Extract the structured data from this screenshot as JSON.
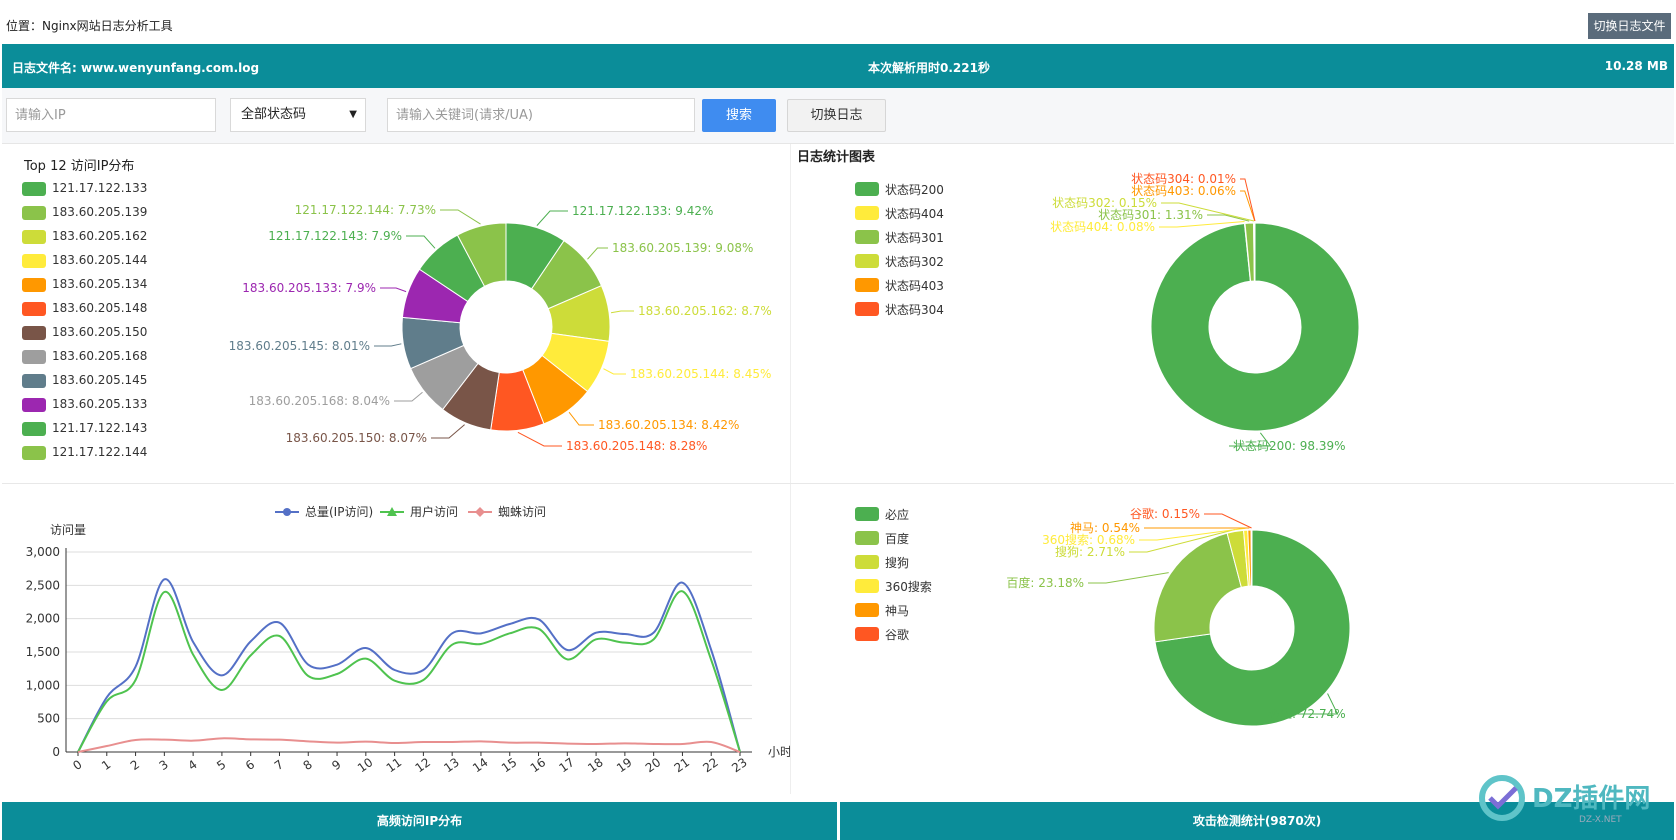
{
  "header": {
    "location_label": "位置：",
    "location_value": "Nginx网站日志分析工具",
    "switch_file_label": "切换日志文件"
  },
  "info": {
    "file_label": "日志文件名: www.wenyunfang.com.log",
    "parse_time": "本次解析用时0.221秒",
    "file_size": "10.28 MB"
  },
  "search": {
    "ip_placeholder": "请输入IP",
    "status_selected": "全部状态码",
    "keyword_placeholder": "请输入关键词(请求/UA)",
    "search_label": "搜索",
    "switch_log_label": "切换日志"
  },
  "ip_chart": {
    "title": "Top 12 访问IP分布",
    "chart_data": {
      "type": "pie",
      "labels": [
        "121.17.122.133",
        "183.60.205.139",
        "183.60.205.162",
        "183.60.205.144",
        "183.60.205.134",
        "183.60.205.148",
        "183.60.205.150",
        "183.60.205.168",
        "183.60.205.145",
        "183.60.205.133",
        "121.17.122.143",
        "121.17.122.144"
      ],
      "values": [
        9.42,
        9.08,
        8.7,
        8.45,
        8.42,
        8.28,
        8.07,
        8.04,
        8.01,
        7.9,
        7.9,
        7.73
      ],
      "slice_labels": [
        "121.17.122.133: 9.42%",
        "183.60.205.139: 9.08%",
        "183.60.205.162: 8.7%",
        "183.60.205.144: 8.45%",
        "183.60.205.134: 8.42%",
        "183.60.205.148: 8.28%",
        "183.60.205.150: 8.07%",
        "183.60.205.168: 8.04%",
        "183.60.205.145: 8.01%",
        "183.60.205.133: 7.9%",
        "121.17.122.143: 7.9%",
        "121.17.122.144: 7.73%"
      ],
      "colors": [
        "#4caf50",
        "#8bc34a",
        "#cddc39",
        "#ffeb3b",
        "#ff9800",
        "#ff5722",
        "#795548",
        "#9e9e9e",
        "#607d8b",
        "#9c27b0",
        "#4caf50",
        "#8bc34a"
      ],
      "legend_position": "left"
    }
  },
  "status_chart": {
    "title": "日志统计图表",
    "chart_data": {
      "type": "pie",
      "labels": [
        "状态码200",
        "状态码404",
        "状态码301",
        "状态码302",
        "状态码403",
        "状态码304"
      ],
      "values": [
        98.39,
        0.08,
        1.31,
        0.15,
        0.06,
        0.01
      ],
      "slice_labels": [
        "状态码200: 98.39%",
        "状态码404: 0.08%",
        "状态码301: 1.31%",
        "状态码302: 0.15%",
        "状态码403: 0.06%",
        "状态码304: 0.01%"
      ],
      "colors": [
        "#4caf50",
        "#ffeb3b",
        "#8bc34a",
        "#cddc39",
        "#ff9800",
        "#ff5722"
      ],
      "legend_position": "left"
    }
  },
  "traffic_chart": {
    "chart_data": {
      "type": "line",
      "ylabel": "访问量",
      "xlabel": "小时",
      "x": [
        "0",
        "1",
        "2",
        "3",
        "4",
        "5",
        "6",
        "7",
        "8",
        "9",
        "10",
        "11",
        "12",
        "13",
        "14",
        "15",
        "16",
        "17",
        "18",
        "19",
        "20",
        "21",
        "22",
        "23"
      ],
      "ylim": [
        0,
        3000
      ],
      "yticks": [
        "0",
        "500",
        "1,000",
        "1,500",
        "2,000",
        "2,500",
        "3,000"
      ],
      "series": [
        {
          "name": "总量(IP访问)",
          "color": "#5470c6",
          "values": [
            0,
            820,
            1280,
            2590,
            1650,
            1150,
            1660,
            1940,
            1310,
            1310,
            1560,
            1230,
            1230,
            1780,
            1780,
            1920,
            1990,
            1530,
            1790,
            1770,
            1790,
            2540,
            1530,
            0
          ]
        },
        {
          "name": "用户访问",
          "color": "#4fc34f",
          "values": [
            0,
            760,
            1080,
            2400,
            1460,
            930,
            1450,
            1740,
            1140,
            1170,
            1400,
            1070,
            1080,
            1610,
            1620,
            1780,
            1850,
            1390,
            1690,
            1640,
            1690,
            2410,
            1380,
            0
          ]
        },
        {
          "name": "蜘蛛访问",
          "color": "#e88f8f",
          "values": [
            0,
            90,
            180,
            185,
            170,
            205,
            190,
            185,
            160,
            140,
            155,
            135,
            150,
            150,
            160,
            140,
            140,
            125,
            120,
            130,
            120,
            120,
            150,
            0
          ]
        }
      ],
      "grid": true,
      "legend_position": "top"
    }
  },
  "search_engine_chart": {
    "chart_data": {
      "type": "pie",
      "labels": [
        "必应",
        "百度",
        "搜狗",
        "360搜索",
        "神马",
        "谷歌"
      ],
      "values": [
        72.74,
        23.18,
        2.71,
        0.68,
        0.54,
        0.15
      ],
      "slice_labels": [
        "必应: 72.74%",
        "百度: 23.18%",
        "搜狗: 2.71%",
        "360搜索: 0.68%",
        "神马: 0.54%",
        "谷歌: 0.15%"
      ],
      "colors": [
        "#4caf50",
        "#8bc34a",
        "#cddc39",
        "#ffeb3b",
        "#ff9800",
        "#ff5722"
      ],
      "legend_position": "left"
    }
  },
  "footer": {
    "left_label": "高频访问IP分布",
    "right_label": "攻击检测统计(9870次)"
  },
  "watermark": {
    "text": "DZ插件网",
    "sub": "DZ-X.NET"
  }
}
